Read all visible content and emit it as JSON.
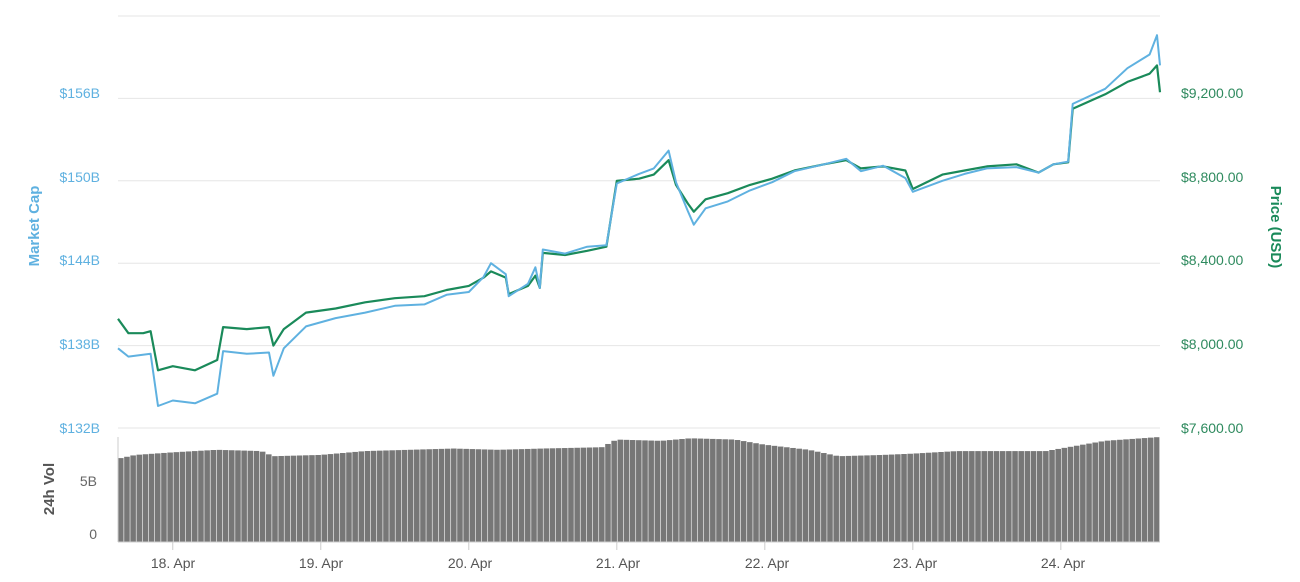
{
  "chart_data": {
    "type": "line",
    "colors": {
      "market_cap": "#5fb1e0",
      "price": "#1a8a5a",
      "volume": "#777777",
      "grid": "#e6e6e6"
    },
    "axes": {
      "left": {
        "label": "Market Cap",
        "ticks": [
          "$132B",
          "$138B",
          "$144B",
          "$150B",
          "$156B"
        ],
        "tick_values": [
          132,
          138,
          144,
          150,
          156
        ],
        "range": [
          132,
          162
        ]
      },
      "right": {
        "label": "Price (USD)",
        "ticks": [
          "$7,600.00",
          "$8,000.00",
          "$8,400.00",
          "$8,800.00",
          "$9,200.00"
        ],
        "tick_values": [
          7600,
          8000,
          8400,
          8800,
          9200
        ],
        "range": [
          7600,
          9600
        ]
      },
      "volume": {
        "label": "24h Vol",
        "ticks": [
          "0",
          "5B"
        ],
        "tick_values": [
          0,
          5
        ],
        "range": [
          0,
          8.2
        ]
      },
      "x": {
        "ticks": [
          "18. Apr",
          "19. Apr",
          "20. Apr",
          "21. Apr",
          "22. Apr",
          "23. Apr",
          "24. Apr"
        ],
        "tick_values": [
          18,
          19,
          20,
          21,
          22,
          23,
          24
        ],
        "range": [
          17.63,
          24.67
        ]
      }
    },
    "grid": true,
    "series": [
      {
        "name": "Market Cap",
        "axis": "left",
        "points": [
          [
            17.63,
            137.8
          ],
          [
            17.7,
            137.2
          ],
          [
            17.85,
            137.4
          ],
          [
            17.9,
            133.6
          ],
          [
            18.0,
            134.0
          ],
          [
            18.15,
            133.8
          ],
          [
            18.3,
            134.5
          ],
          [
            18.34,
            137.6
          ],
          [
            18.5,
            137.4
          ],
          [
            18.65,
            137.5
          ],
          [
            18.68,
            135.8
          ],
          [
            18.75,
            137.8
          ],
          [
            18.9,
            139.4
          ],
          [
            19.1,
            140.0
          ],
          [
            19.3,
            140.4
          ],
          [
            19.5,
            140.9
          ],
          [
            19.7,
            141.0
          ],
          [
            19.85,
            141.7
          ],
          [
            20.0,
            141.9
          ],
          [
            20.1,
            143.0
          ],
          [
            20.15,
            144.0
          ],
          [
            20.25,
            143.2
          ],
          [
            20.27,
            141.6
          ],
          [
            20.4,
            142.5
          ],
          [
            20.45,
            143.7
          ],
          [
            20.48,
            142.2
          ],
          [
            20.5,
            145.0
          ],
          [
            20.65,
            144.7
          ],
          [
            20.8,
            145.2
          ],
          [
            20.93,
            145.3
          ],
          [
            21.0,
            149.8
          ],
          [
            21.15,
            150.5
          ],
          [
            21.25,
            150.9
          ],
          [
            21.35,
            152.2
          ],
          [
            21.4,
            149.9
          ],
          [
            21.48,
            147.8
          ],
          [
            21.52,
            146.8
          ],
          [
            21.6,
            148.0
          ],
          [
            21.75,
            148.5
          ],
          [
            21.9,
            149.3
          ],
          [
            22.05,
            149.9
          ],
          [
            22.2,
            150.7
          ],
          [
            22.4,
            151.2
          ],
          [
            22.55,
            151.6
          ],
          [
            22.65,
            150.7
          ],
          [
            22.8,
            151.1
          ],
          [
            22.95,
            150.2
          ],
          [
            23.0,
            149.2
          ],
          [
            23.2,
            150.0
          ],
          [
            23.35,
            150.5
          ],
          [
            23.5,
            150.9
          ],
          [
            23.7,
            151.0
          ],
          [
            23.85,
            150.6
          ],
          [
            23.95,
            151.2
          ],
          [
            24.05,
            151.4
          ],
          [
            24.08,
            155.6
          ],
          [
            24.3,
            156.7
          ],
          [
            24.45,
            158.2
          ],
          [
            24.6,
            159.2
          ],
          [
            24.65,
            160.6
          ],
          [
            24.67,
            158.4
          ]
        ]
      },
      {
        "name": "Price (USD)",
        "axis": "right",
        "points": [
          [
            17.63,
            8130
          ],
          [
            17.7,
            8060
          ],
          [
            17.8,
            8060
          ],
          [
            17.85,
            8070
          ],
          [
            17.9,
            7880
          ],
          [
            18.0,
            7900
          ],
          [
            18.15,
            7880
          ],
          [
            18.3,
            7930
          ],
          [
            18.34,
            8090
          ],
          [
            18.5,
            8080
          ],
          [
            18.65,
            8090
          ],
          [
            18.68,
            8000
          ],
          [
            18.75,
            8080
          ],
          [
            18.9,
            8160
          ],
          [
            19.1,
            8180
          ],
          [
            19.3,
            8210
          ],
          [
            19.5,
            8230
          ],
          [
            19.7,
            8240
          ],
          [
            19.85,
            8270
          ],
          [
            20.0,
            8290
          ],
          [
            20.1,
            8330
          ],
          [
            20.15,
            8360
          ],
          [
            20.25,
            8330
          ],
          [
            20.27,
            8250
          ],
          [
            20.4,
            8290
          ],
          [
            20.45,
            8340
          ],
          [
            20.48,
            8280
          ],
          [
            20.5,
            8450
          ],
          [
            20.65,
            8440
          ],
          [
            20.8,
            8460
          ],
          [
            20.93,
            8480
          ],
          [
            21.0,
            8800
          ],
          [
            21.15,
            8810
          ],
          [
            21.25,
            8830
          ],
          [
            21.35,
            8900
          ],
          [
            21.4,
            8780
          ],
          [
            21.48,
            8690
          ],
          [
            21.52,
            8650
          ],
          [
            21.6,
            8710
          ],
          [
            21.75,
            8740
          ],
          [
            21.9,
            8780
          ],
          [
            22.05,
            8810
          ],
          [
            22.2,
            8850
          ],
          [
            22.4,
            8880
          ],
          [
            22.55,
            8900
          ],
          [
            22.65,
            8860
          ],
          [
            22.8,
            8870
          ],
          [
            22.95,
            8850
          ],
          [
            23.0,
            8760
          ],
          [
            23.2,
            8830
          ],
          [
            23.35,
            8850
          ],
          [
            23.5,
            8870
          ],
          [
            23.7,
            8880
          ],
          [
            23.85,
            8840
          ],
          [
            23.95,
            8880
          ],
          [
            24.05,
            8890
          ],
          [
            24.08,
            9150
          ],
          [
            24.3,
            9220
          ],
          [
            24.45,
            9280
          ],
          [
            24.6,
            9320
          ],
          [
            24.65,
            9360
          ],
          [
            24.67,
            9230
          ]
        ]
      },
      {
        "name": "24h Vol",
        "axis": "volume",
        "points": [
          [
            17.63,
            6.5
          ],
          [
            17.75,
            6.8
          ],
          [
            18.0,
            7.0
          ],
          [
            18.3,
            7.2
          ],
          [
            18.6,
            7.1
          ],
          [
            18.68,
            6.7
          ],
          [
            19.0,
            6.8
          ],
          [
            19.3,
            7.1
          ],
          [
            19.6,
            7.2
          ],
          [
            19.9,
            7.3
          ],
          [
            20.2,
            7.2
          ],
          [
            20.5,
            7.3
          ],
          [
            20.9,
            7.4
          ],
          [
            21.0,
            8.0
          ],
          [
            21.3,
            7.9
          ],
          [
            21.5,
            8.1
          ],
          [
            21.8,
            8.0
          ],
          [
            22.0,
            7.6
          ],
          [
            22.3,
            7.2
          ],
          [
            22.5,
            6.7
          ],
          [
            22.8,
            6.8
          ],
          [
            23.0,
            6.9
          ],
          [
            23.3,
            7.1
          ],
          [
            23.6,
            7.1
          ],
          [
            23.9,
            7.1
          ],
          [
            24.05,
            7.4
          ],
          [
            24.3,
            7.9
          ],
          [
            24.67,
            8.2
          ]
        ]
      }
    ]
  }
}
